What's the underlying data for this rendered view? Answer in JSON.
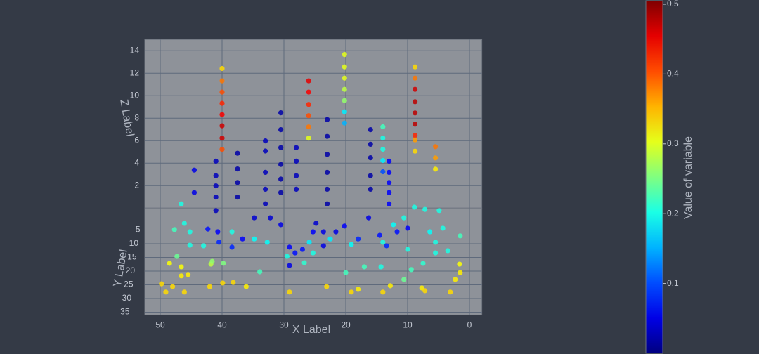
{
  "chart_data": {
    "type": "scatter3d",
    "x_label": "X Label",
    "y_label": "Y Label",
    "z_label": "Z Label",
    "colorbar_title": "Value of variable",
    "colorscale": "Jet",
    "clim": [
      0,
      0.5
    ],
    "cticks": [
      0.1,
      0.2,
      0.3,
      0.4,
      0.5
    ],
    "xlim": [
      -2,
      52.5
    ],
    "xticks": [
      0,
      10,
      20,
      30,
      40,
      50
    ],
    "ylim": [
      -3,
      36
    ],
    "yticks": [
      5,
      10,
      15,
      20,
      25,
      30,
      35
    ],
    "zlim": [
      0,
      15
    ],
    "zticks": [
      2,
      4,
      6,
      8,
      10,
      12,
      14
    ],
    "grid": true,
    "x": [
      40,
      40,
      40,
      40,
      40,
      40,
      40,
      40,
      26,
      26,
      26,
      26,
      26,
      26,
      20.2,
      20.2,
      20.2,
      20.2,
      20.2,
      20.2,
      20.2,
      8.8,
      8.8,
      8.8,
      8.8,
      8.8,
      8.8,
      8.8,
      8.8,
      8.8,
      5.5,
      5.5,
      5.5,
      14,
      14,
      14,
      14,
      14,
      30.5,
      30.5,
      30.5,
      30.5,
      30.5,
      30.5,
      37.5,
      37.5,
      37.5,
      37.5,
      33,
      33,
      33,
      33,
      33,
      23,
      23,
      23,
      23,
      23,
      23,
      28,
      28,
      28,
      28,
      16,
      16,
      16,
      16,
      16,
      13,
      13,
      13,
      13,
      13,
      44.5,
      44.5,
      41,
      41,
      41,
      41,
      41,
      4.9,
      7.2,
      8.9,
      46.6,
      49.8,
      49.1,
      48.0,
      46.1,
      48.5,
      46.6,
      46.6,
      45.5,
      42.0,
      39.9,
      38.2,
      36.1,
      29.1,
      23.1,
      19.1,
      18.0,
      14.0,
      12.8,
      7.7,
      7.2,
      3.1,
      2.3,
      1.6,
      1.5,
      41.8,
      47.3,
      45.2,
      43.0,
      41.6,
      39.8,
      33.9,
      29.5,
      26.7,
      25.3,
      20.0,
      17.0,
      14.3,
      10.6,
      9.4,
      7.5,
      5.5,
      3.5,
      1.5,
      4.3,
      10.6,
      12.3,
      47.7,
      46.1,
      45.2,
      38.4,
      34.8,
      32.7,
      25.9,
      22.5,
      19.1,
      14.0,
      10.0,
      6.4,
      5.5,
      42.3,
      40.7,
      40.5,
      38.4,
      36.7,
      34.8,
      32.2,
      30.5,
      29.1,
      28.2,
      27.0,
      25.3,
      23.6,
      21.6,
      20.2,
      18.0,
      16.3,
      14.5,
      13.4,
      11.7,
      10.0,
      24.8,
      23.6,
      29.1
    ],
    "y": [
      1,
      1,
      1,
      1,
      1,
      1,
      1,
      1,
      1,
      1,
      1,
      1,
      1,
      1,
      0,
      0,
      0,
      0,
      0,
      0,
      0,
      0,
      0,
      0,
      0,
      0,
      0,
      0,
      0,
      0,
      0,
      0,
      0,
      3,
      3,
      3,
      3,
      3,
      2,
      2,
      2,
      2,
      2,
      2,
      2,
      2,
      2,
      2,
      2,
      2,
      2,
      2,
      2,
      2,
      2,
      2,
      2,
      2,
      2,
      2,
      2,
      2,
      2,
      2,
      2,
      2,
      2,
      2,
      2,
      2,
      2,
      2,
      2,
      2,
      2,
      2,
      2,
      2,
      2,
      2,
      2,
      2,
      2,
      2,
      26.7,
      29.7,
      27.7,
      29.7,
      19.2,
      20.5,
      23.8,
      23.3,
      27.7,
      26.4,
      26.2,
      27.7,
      29.7,
      27.7,
      29.7,
      28.7,
      29.7,
      27.4,
      28.2,
      29.2,
      29.7,
      25.1,
      19.5,
      22.6,
      19.5,
      16.7,
      12.6,
      12.8,
      18.5,
      19.2,
      22.3,
      16.7,
      19.0,
      15.4,
      22.6,
      20.5,
      20.5,
      25.1,
      21.5,
      19.2,
      15.4,
      14.6,
      9.2,
      6.4,
      2.6,
      5.1,
      6.9,
      4.6,
      7.7,
      7.7,
      10.3,
      11.5,
      11.5,
      10.3,
      12.3,
      11.5,
      14.1,
      7.7,
      11.5,
      6.7,
      7.7,
      11.5,
      13.3,
      10.3,
      2.6,
      2.6,
      5.1,
      13.3,
      15.4,
      14.1,
      7.7,
      7.7,
      7.7,
      5.6,
      10.3,
      2.6,
      9.0,
      12.8,
      7.7,
      6.4,
      4.6,
      12.8,
      20.0
    ],
    "z": [
      13.4,
      12.3,
      11.3,
      10.3,
      9.3,
      8.3,
      7.2,
      6.2,
      12.3,
      11.3,
      10.2,
      9.2,
      8.2,
      7.2,
      14.4,
      13.3,
      12.3,
      11.3,
      10.3,
      9.3,
      8.3,
      13.3,
      12.3,
      11.3,
      10.2,
      9.2,
      8.2,
      7.2,
      6.8,
      5.8,
      6.2,
      5.2,
      4.2,
      8.7,
      7.7,
      6.7,
      5.7,
      4.7,
      9.7,
      8.2,
      6.6,
      5.1,
      3.8,
      2.6,
      6.1,
      4.7,
      3.5,
      2.2,
      7.2,
      6.3,
      4.4,
      2.9,
      1.6,
      9.1,
      7.6,
      6.0,
      4.4,
      2.9,
      1.6,
      6.6,
      5.4,
      4.1,
      2.9,
      8.2,
      6.9,
      5.7,
      4.1,
      2.9,
      5.4,
      4.4,
      3.5,
      2.6,
      1.6,
      4.6,
      2.6,
      5.4,
      4.1,
      3.2,
      2.2,
      1.0,
      1.0,
      1.1,
      1.3,
      1.6,
      0.5,
      0.5,
      0.5,
      0.5,
      0.5,
      0.5,
      0.5,
      0.5,
      0.5,
      0.5,
      0.5,
      0.5,
      0.5,
      0.5,
      0.5,
      0.5,
      0.5,
      0.5,
      0.5,
      0.5,
      0.5,
      0.5,
      0.5,
      0.5,
      0.5,
      0.5,
      0.5,
      0.5,
      0.5,
      0.5,
      0.5,
      0.5,
      0.5,
      0.5,
      0.5,
      0.5,
      0.5,
      0.5,
      0.5,
      0.5,
      0.5,
      0.5,
      0.5,
      0.5,
      0.5,
      0.5,
      0.5,
      0.5,
      0.5,
      0.5,
      0.5,
      0.5,
      0.5,
      0.5,
      0.5,
      0.5,
      0.5,
      0.5,
      0.5,
      0.5,
      0.5,
      0.5,
      0.5,
      0.5,
      0.5,
      0.5,
      0.5,
      0.5,
      0.5,
      0.5,
      0.5,
      0.5,
      0.5,
      0.5,
      0.5,
      0.5,
      0.5,
      0.5,
      0.5,
      0.5,
      0.5,
      0.5,
      0.5
    ],
    "values": [
      0.33,
      0.38,
      0.4,
      0.42,
      0.44,
      0.46,
      0.46,
      0.4,
      0.45,
      0.44,
      0.42,
      0.4,
      0.38,
      0.3,
      0.3,
      0.3,
      0.3,
      0.28,
      0.26,
      0.18,
      0.15,
      0.33,
      0.38,
      0.46,
      0.47,
      0.47,
      0.47,
      0.42,
      0.36,
      0.33,
      0.38,
      0.36,
      0.32,
      0.22,
      0.2,
      0.2,
      0.18,
      0.1,
      0.02,
      0.02,
      0.02,
      0.02,
      0.02,
      0.02,
      0.02,
      0.02,
      0.02,
      0.02,
      0.03,
      0.03,
      0.03,
      0.03,
      0.03,
      0.02,
      0.02,
      0.02,
      0.02,
      0.02,
      0.02,
      0.03,
      0.03,
      0.03,
      0.03,
      0.02,
      0.02,
      0.02,
      0.02,
      0.02,
      0.06,
      0.06,
      0.06,
      0.06,
      0.06,
      0.05,
      0.05,
      0.03,
      0.03,
      0.03,
      0.03,
      0.03,
      0.2,
      0.2,
      0.2,
      0.2,
      0.33,
      0.33,
      0.33,
      0.33,
      0.31,
      0.31,
      0.32,
      0.32,
      0.33,
      0.33,
      0.33,
      0.32,
      0.33,
      0.33,
      0.33,
      0.32,
      0.33,
      0.32,
      0.32,
      0.33,
      0.33,
      0.32,
      0.31,
      0.32,
      0.28,
      0.24,
      0.2,
      0.2,
      0.26,
      0.25,
      0.22,
      0.2,
      0.21,
      0.2,
      0.22,
      0.22,
      0.2,
      0.24,
      0.22,
      0.21,
      0.2,
      0.2,
      0.22,
      0.2,
      0.2,
      0.19,
      0.22,
      0.2,
      0.2,
      0.2,
      0.19,
      0.19,
      0.18,
      0.18,
      0.19,
      0.2,
      0.2,
      0.19,
      0.2,
      0.07,
      0.06,
      0.08,
      0.08,
      0.06,
      0.04,
      0.04,
      0.05,
      0.06,
      0.07,
      0.07,
      0.06,
      0.05,
      0.05,
      0.06,
      0.08,
      0.05,
      0.07,
      0.08,
      0.07,
      0.06,
      0.04,
      0.05,
      0.05
    ]
  }
}
